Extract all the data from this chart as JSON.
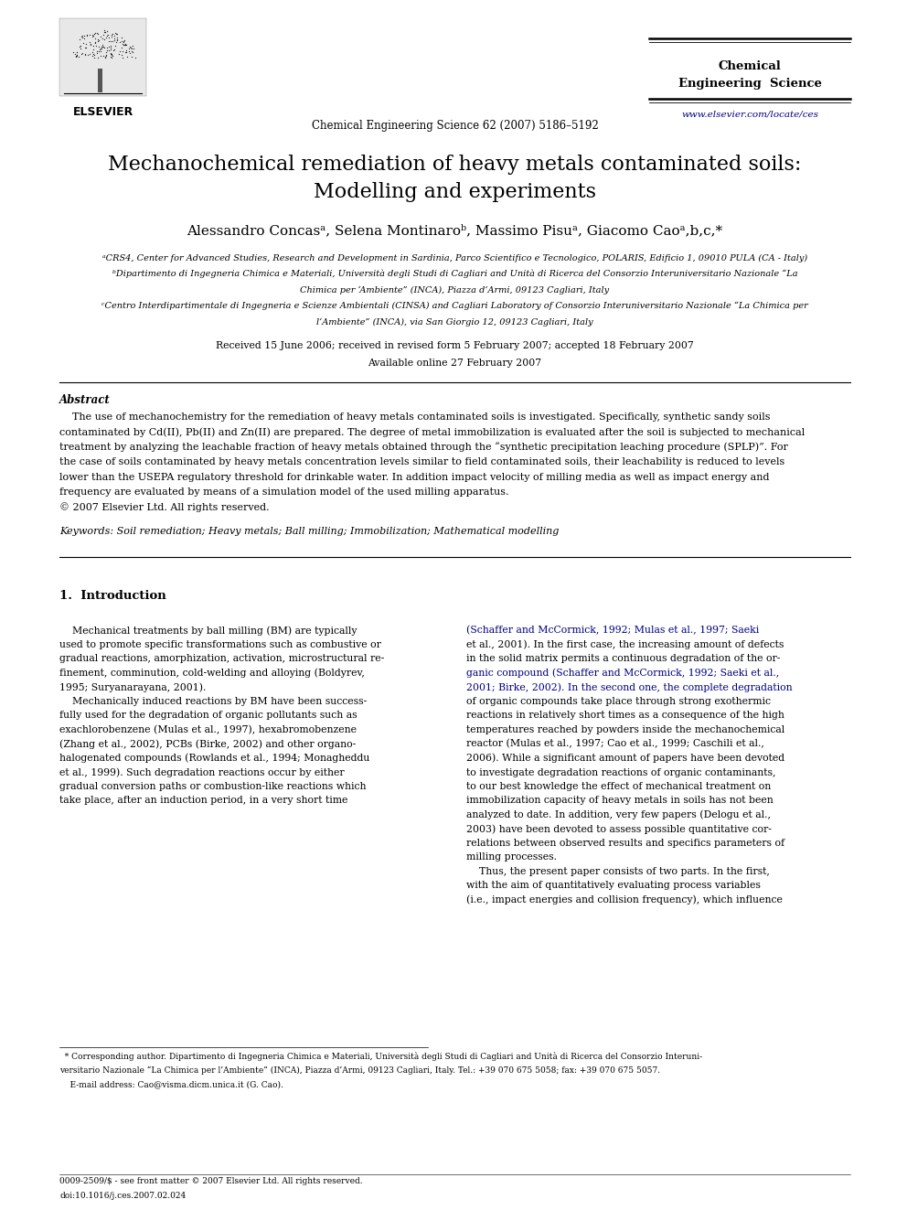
{
  "background_color": "#ffffff",
  "page_width": 9.92,
  "page_height": 13.23,
  "header": {
    "journal_name_line1": "Chemical",
    "journal_name_line2": "Engineering  Science",
    "journal_ref": "Chemical Engineering Science 62 (2007) 5186–5192",
    "url": "www.elsevier.com/locate/ces",
    "url_color": "#000080"
  },
  "title_line1": "Mechanochemical remediation of heavy metals contaminated soils:",
  "title_line2": "Modelling and experiments",
  "authors_text": "Alessandro Concasᵃ, Selena Montinaroᵇ, Massimo Pisuᵃ, Giacomo Caoᵃ,b,c,*",
  "aff_a": "ᵃCRS4, Center for Advanced Studies, Research and Development in Sardinia, Parco Scientifico e Tecnologico, POLARIS, Edificio 1, 09010 PULA (CA - Italy)",
  "aff_b_line1": "ᵇDipartimento di Ingegneria Chimica e Materiali, Università degli Studi di Cagliari and Unità di Ricerca del Consorzio Interuniversitario Nazionale “La",
  "aff_b_line2": "Chimica per ‘Ambiente” (INCA), Piazza d’Armi, 09123 Cagliari, Italy",
  "aff_c_line1": "ᶜCentro Interdipartimentale di Ingegneria e Scienze Ambientali (CINSA) and Cagliari Laboratory of Consorzio Interuniversitario Nazionale “La Chimica per",
  "aff_c_line2": "l’Ambiente” (INCA), via San Giorgio 12, 09123 Cagliari, Italy",
  "received_line": "Received 15 June 2006; received in revised form 5 February 2007; accepted 18 February 2007",
  "available_line": "Available online 27 February 2007",
  "abstract_title": "Abstract",
  "abstract_indent": "    The use of mechanochemistry for the remediation of heavy metals contaminated soils is investigated. Specifically, synthetic sandy soils",
  "abstract_lines": [
    "contaminated by Cd(II), Pb(II) and Zn(II) are prepared. The degree of metal immobilization is evaluated after the soil is subjected to mechanical",
    "treatment by analyzing the leachable fraction of heavy metals obtained through the “synthetic precipitation leaching procedure (SPLP)”. For",
    "the case of soils contaminated by heavy metals concentration levels similar to field contaminated soils, their leachability is reduced to levels",
    "lower than the USEPA regulatory threshold for drinkable water. In addition impact velocity of milling media as well as impact energy and",
    "frequency are evaluated by means of a simulation model of the used milling apparatus.",
    "© 2007 Elsevier Ltd. All rights reserved."
  ],
  "keywords_line": "Keywords: Soil remediation; Heavy metals; Ball milling; Immobilization; Mathematical modelling",
  "section1_title": "1.  Introduction",
  "col1_lines": [
    "    Mechanical treatments by ball milling (BM) are typically",
    "used to promote specific transformations such as combustive or",
    "gradual reactions, amorphization, activation, microstructural re-",
    "finement, comminution, cold-welding and alloying (Boldyrev,",
    "1995; Suryanarayana, 2001).",
    "    Mechanically induced reactions by BM have been success-",
    "fully used for the degradation of organic pollutants such as",
    "exachlorobenzene (Mulas et al., 1997), hexabromobenzene",
    "(Zhang et al., 2002), PCBs (Birke, 2002) and other organo-",
    "halogenated compounds (Rowlands et al., 1994; Monagheddu",
    "et al., 1999). Such degradation reactions occur by either",
    "gradual conversion paths or combustion-like reactions which",
    "take place, after an induction period, in a very short time"
  ],
  "col2_lines": [
    "(Schaffer and McCormick, 1992; Mulas et al., 1997; Saeki",
    "et al., 2001). In the first case, the increasing amount of defects",
    "in the solid matrix permits a continuous degradation of the or-",
    "ganic compound (Schaffer and McCormick, 1992; Saeki et al.,",
    "2001; Birke, 2002). In the second one, the complete degradation",
    "of organic compounds take place through strong exothermic",
    "reactions in relatively short times as a consequence of the high",
    "temperatures reached by powders inside the mechanochemical",
    "reactor (Mulas et al., 1997; Cao et al., 1999; Caschili et al.,",
    "2006). While a significant amount of papers have been devoted",
    "to investigate degradation reactions of organic contaminants,",
    "to our best knowledge the effect of mechanical treatment on",
    "immobilization capacity of heavy metals in soils has not been",
    "analyzed to date. In addition, very few papers (Delogu et al.,",
    "2003) have been devoted to assess possible quantitative cor-",
    "relations between observed results and specifics parameters of",
    "milling processes.",
    "    Thus, the present paper consists of two parts. In the first,",
    "with the aim of quantitatively evaluating process variables",
    "(i.e., impact energies and collision frequency), which influence"
  ],
  "col2_blue_lines": [
    0,
    3,
    4
  ],
  "footnote_lines": [
    "  * Corresponding author. Dipartimento di Ingegneria Chimica e Materiali, Università degli Studi di Cagliari and Unità di Ricerca del Consorzio Interuni-",
    "versitario Nazionale “La Chimica per l’Ambiente” (INCA), Piazza d’Armi, 09123 Cagliari, Italy. Tel.: +39 070 675 5058; fax: +39 070 675 5057.",
    "    E-mail address: Cao@visma.dicm.unica.it (G. Cao)."
  ],
  "footer_line1": "0009-2509/$ - see front matter © 2007 Elsevier Ltd. All rights reserved.",
  "footer_line2": "doi:10.1016/j.ces.2007.02.024",
  "text_color": "#000000",
  "link_color": "#000080"
}
